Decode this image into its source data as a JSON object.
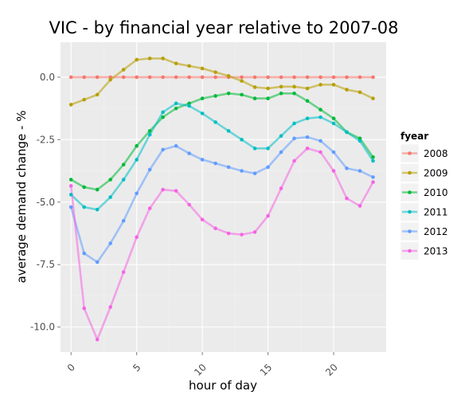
{
  "chart_data": {
    "type": "line",
    "title": "VIC - by financial year relative to 2007-08",
    "xlabel": "hour of day",
    "ylabel": "average demand change - %",
    "xlim": [
      -0.8,
      24
    ],
    "ylim": [
      -11.0,
      1.4
    ],
    "x_ticks": [
      0,
      5,
      10,
      15,
      20
    ],
    "x_tick_labels": [
      "0",
      "5",
      "10",
      "15",
      "20"
    ],
    "y_ticks": [
      0.0,
      -2.5,
      -5.0,
      -7.5,
      -10.0
    ],
    "y_tick_labels": [
      "0.0",
      "-2.5",
      "-5.0",
      "-7.5",
      "-10.0"
    ],
    "grid": true,
    "legend": {
      "title": "fyear",
      "position": "right"
    },
    "x": [
      0,
      1,
      2,
      3,
      4,
      5,
      6,
      7,
      8,
      9,
      10,
      11,
      12,
      13,
      14,
      15,
      16,
      17,
      18,
      19,
      20,
      21,
      22,
      23
    ],
    "series": [
      {
        "name": "2008",
        "color": "#f8766d",
        "values": [
          0,
          0,
          0,
          0,
          0,
          0,
          0,
          0,
          0,
          0,
          0,
          0,
          0,
          0,
          0,
          0,
          0,
          0,
          0,
          0,
          0,
          0,
          0,
          0
        ]
      },
      {
        "name": "2009",
        "color": "#b79f00",
        "values": [
          -1.1,
          -0.9,
          -0.7,
          -0.1,
          0.3,
          0.7,
          0.75,
          0.75,
          0.55,
          0.45,
          0.35,
          0.2,
          0.05,
          -0.15,
          -0.4,
          -0.45,
          -0.38,
          -0.38,
          -0.45,
          -0.3,
          -0.3,
          -0.5,
          -0.6,
          -0.85
        ]
      },
      {
        "name": "2010",
        "color": "#00ba38",
        "values": [
          -4.1,
          -4.4,
          -4.5,
          -4.1,
          -3.5,
          -2.75,
          -2.15,
          -1.6,
          -1.25,
          -1.05,
          -0.85,
          -0.75,
          -0.65,
          -0.7,
          -0.85,
          -0.85,
          -0.65,
          -0.65,
          -0.95,
          -1.3,
          -1.65,
          -2.2,
          -2.45,
          -3.2
        ]
      },
      {
        "name": "2011",
        "color": "#00bfc4",
        "values": [
          -4.7,
          -5.2,
          -5.3,
          -4.8,
          -4.1,
          -3.3,
          -2.3,
          -1.4,
          -1.05,
          -1.15,
          -1.45,
          -1.8,
          -2.15,
          -2.5,
          -2.85,
          -2.85,
          -2.35,
          -1.85,
          -1.65,
          -1.6,
          -1.85,
          -2.2,
          -2.55,
          -3.35
        ]
      },
      {
        "name": "2012",
        "color": "#619cff",
        "values": [
          -5.2,
          -7.05,
          -7.4,
          -6.65,
          -5.75,
          -4.65,
          -3.7,
          -2.9,
          -2.75,
          -3.05,
          -3.3,
          -3.45,
          -3.6,
          -3.75,
          -3.85,
          -3.6,
          -3.0,
          -2.45,
          -2.4,
          -2.55,
          -3.0,
          -3.65,
          -3.75,
          -4.0
        ]
      },
      {
        "name": "2013",
        "color": "#f564e3",
        "values": [
          -4.35,
          -9.25,
          -10.5,
          -9.2,
          -7.8,
          -6.4,
          -5.25,
          -4.5,
          -4.55,
          -5.1,
          -5.7,
          -6.05,
          -6.25,
          -6.3,
          -6.2,
          -5.55,
          -4.45,
          -3.35,
          -2.85,
          -3.0,
          -3.75,
          -4.85,
          -5.15,
          -4.2
        ]
      }
    ]
  }
}
